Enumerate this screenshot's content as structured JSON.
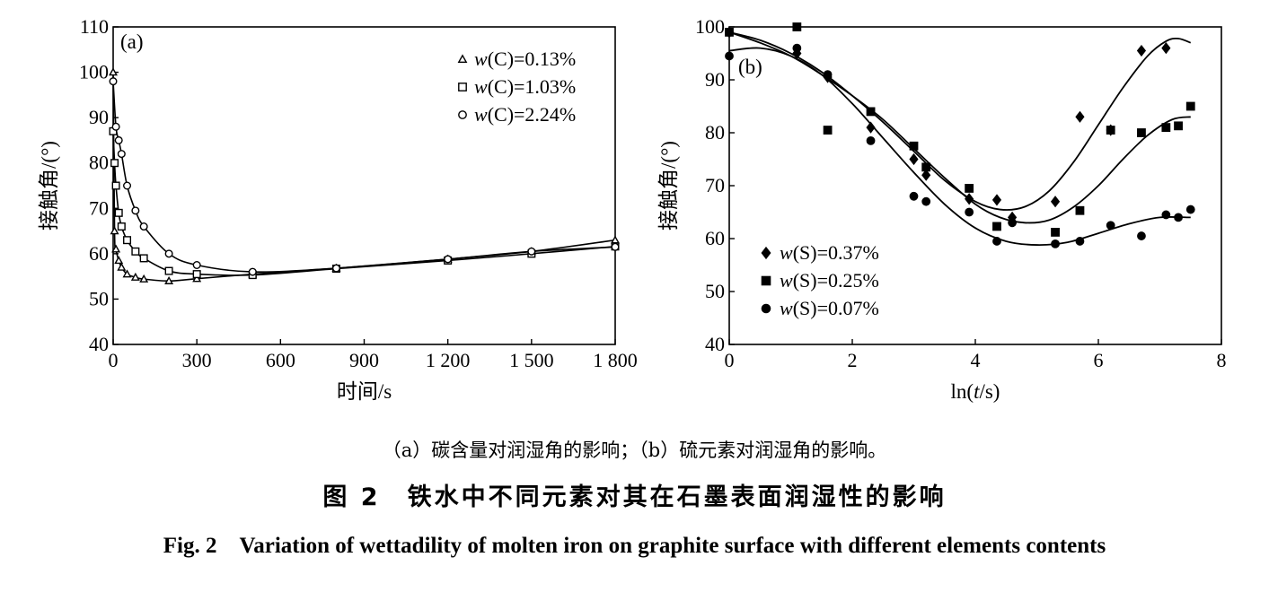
{
  "chart_data": [
    {
      "type": "line",
      "panel_label": "(a)",
      "xlabel": "时间/s",
      "ylabel": "接触角/(°)",
      "xlim": [
        0,
        1800
      ],
      "ylim": [
        40,
        110
      ],
      "xticks": [
        0,
        300,
        600,
        900,
        1200,
        1500,
        1800
      ],
      "xtick_labels": [
        "0",
        "300",
        "600",
        "900",
        "1 200",
        "1 500",
        "1 800"
      ],
      "yticks": [
        40,
        50,
        60,
        70,
        80,
        90,
        100,
        110
      ],
      "ytick_labels": [
        "40",
        "50",
        "60",
        "70",
        "80",
        "90",
        "100",
        "110"
      ],
      "legend_position": "top-right",
      "series": [
        {
          "name": "w(C)=0.13%",
          "legend_pre": "w",
          "legend_post": "(C)=0.13%",
          "marker": "triangle",
          "x": [
            0,
            5,
            10,
            20,
            30,
            50,
            80,
            110,
            200,
            300,
            500,
            800,
            1200,
            1500,
            1800
          ],
          "y": [
            100,
            65,
            61,
            58.5,
            57,
            55.5,
            54.8,
            54.4,
            54,
            54.5,
            55.5,
            56.8,
            58.8,
            60.5,
            63
          ]
        },
        {
          "name": "w(C)=1.03%",
          "legend_pre": "w",
          "legend_post": "(C)=1.03%",
          "marker": "square",
          "x": [
            0,
            5,
            10,
            20,
            30,
            50,
            80,
            110,
            200,
            300,
            500,
            800,
            1200,
            1500,
            1800
          ],
          "y": [
            87,
            80,
            75,
            69,
            66,
            63,
            60.5,
            59,
            56.2,
            55.5,
            55.3,
            56.7,
            58.5,
            60,
            61.6
          ]
        },
        {
          "name": "w(C)=2.24%",
          "legend_pre": "w",
          "legend_post": "(C)=2.24%",
          "marker": "circle",
          "x": [
            0,
            10,
            20,
            30,
            50,
            80,
            110,
            200,
            300,
            500,
            800,
            1200,
            1500,
            1800
          ],
          "y": [
            98,
            88,
            85,
            82,
            75,
            69.5,
            66,
            60,
            57.5,
            56,
            56.8,
            58.8,
            60.5,
            61.5
          ]
        }
      ]
    },
    {
      "type": "scatter",
      "panel_label": "(b)",
      "xlabel_pre": "ln(",
      "xlabel_var": "t",
      "xlabel_post": "/s)",
      "ylabel": "接触角/(°)",
      "xlim": [
        0,
        8
      ],
      "ylim": [
        40,
        100
      ],
      "xticks": [
        0,
        2,
        4,
        6,
        8
      ],
      "xtick_labels": [
        "0",
        "2",
        "4",
        "6",
        "8"
      ],
      "yticks": [
        40,
        50,
        60,
        70,
        80,
        90,
        100
      ],
      "ytick_labels": [
        "40",
        "50",
        "60",
        "70",
        "80",
        "90",
        "100"
      ],
      "legend_position": "bottom-left",
      "series": [
        {
          "name": "w(S)=0.37%",
          "legend_pre": "w",
          "legend_post": "(S)=0.37%",
          "marker": "diamond",
          "x": [
            0,
            1.1,
            1.6,
            2.3,
            3.0,
            3.2,
            3.9,
            4.35,
            4.6,
            5.3,
            5.7,
            6.2,
            6.7,
            7.1
          ],
          "y": [
            99,
            95,
            90.5,
            81,
            75,
            72,
            67.5,
            67.3,
            64,
            67,
            83,
            80.5,
            95.5,
            96
          ],
          "fit_x": [
            0,
            0.5,
            1.0,
            1.5,
            2.0,
            2.5,
            3.0,
            3.5,
            4.0,
            4.4,
            4.8,
            5.2,
            5.6,
            6.0,
            6.4,
            6.8,
            7.1,
            7.3,
            7.5
          ],
          "fit_y": [
            99,
            97.5,
            95,
            91.5,
            87,
            82,
            76.5,
            71,
            67,
            65.5,
            66,
            69,
            74.5,
            81.5,
            88.5,
            94.5,
            97.3,
            97.8,
            97
          ]
        },
        {
          "name": "w(S)=0.25%",
          "legend_pre": "w",
          "legend_post": "(S)=0.25%",
          "marker": "square",
          "x": [
            0,
            1.1,
            1.6,
            2.3,
            3.0,
            3.2,
            3.9,
            4.35,
            5.3,
            5.7,
            6.2,
            6.7,
            7.1,
            7.3,
            7.5
          ],
          "y": [
            99,
            100,
            80.5,
            84,
            77.5,
            73.5,
            69.5,
            62.3,
            61.2,
            65.3,
            80.5,
            80,
            81,
            81.3,
            85
          ],
          "fit_x": [
            0,
            0.5,
            1.0,
            1.5,
            2.0,
            2.5,
            3.0,
            3.5,
            4.0,
            4.4,
            4.8,
            5.2,
            5.6,
            6.0,
            6.4,
            6.8,
            7.2,
            7.5
          ],
          "fit_y": [
            99,
            97,
            94.5,
            91,
            87,
            82.5,
            77,
            71.5,
            66.5,
            64,
            63,
            63.5,
            66,
            70,
            75,
            79.5,
            82.5,
            83
          ]
        },
        {
          "name": "w(S)=0.07%",
          "legend_pre": "w",
          "legend_post": "(S)=0.07%",
          "marker": "circle",
          "x": [
            0,
            1.1,
            1.6,
            2.3,
            3.0,
            3.2,
            3.9,
            4.35,
            4.6,
            5.3,
            5.7,
            6.2,
            6.7,
            7.1,
            7.3,
            7.5
          ],
          "y": [
            94.5,
            96,
            91,
            78.5,
            68,
            67,
            65,
            59.5,
            63,
            59,
            59.5,
            62.5,
            60.5,
            64.5,
            64,
            65.5
          ],
          "fit_x": [
            0,
            0.5,
            1.0,
            1.5,
            2.0,
            2.5,
            3.0,
            3.5,
            4.0,
            4.5,
            5.0,
            5.5,
            6.0,
            6.5,
            7.0,
            7.5
          ],
          "fit_y": [
            95.5,
            96,
            94.5,
            91,
            85.5,
            79,
            72.5,
            66.5,
            62,
            59.5,
            58.8,
            59.3,
            61,
            62.8,
            64,
            64
          ]
        }
      ]
    }
  ],
  "captions": {
    "subcaption": "（a）碳含量对润湿角的影响；（b）硫元素对润湿角的影响。",
    "title_zh": "图 2　铁水中不同元素对其在石墨表面润湿性的影响",
    "title_en": "Fig. 2　Variation of wettadility of molten iron on graphite surface with different elements contents"
  }
}
